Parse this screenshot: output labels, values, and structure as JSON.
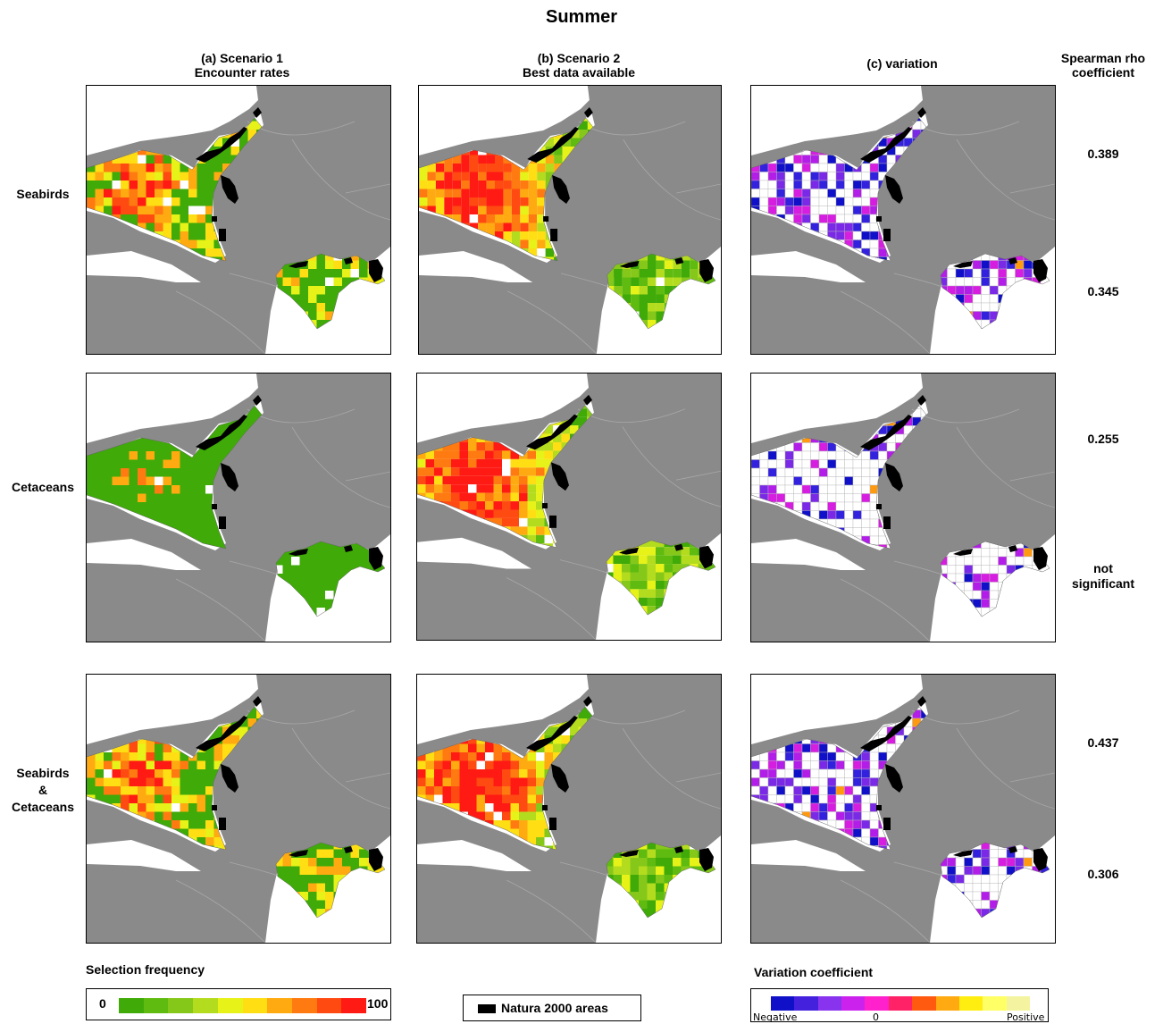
{
  "title": "Summer",
  "columns": [
    {
      "line1": "(a) Scenario 1",
      "line2": "Encounter rates"
    },
    {
      "line1": "(b) Scenario 2",
      "line2": "Best data available"
    },
    {
      "line1": "(c) variation",
      "line2": ""
    }
  ],
  "rho_header": {
    "line1": "Spearman rho",
    "line2": "coefficient"
  },
  "rows": [
    {
      "line1": "Seabirds",
      "line2": "",
      "line3": ""
    },
    {
      "line1": "Cetaceans",
      "line2": "",
      "line3": ""
    },
    {
      "line1": "Seabirds",
      "line2": "&",
      "line3": "Cetaceans"
    }
  ],
  "rho_values": [
    {
      "line1": "0.389",
      "line2": ""
    },
    {
      "line1": "0.345",
      "line2": ""
    },
    {
      "line1": "0.255",
      "line2": ""
    },
    {
      "line1": "not",
      "line2": "significant"
    },
    {
      "line1": "0.437",
      "line2": ""
    },
    {
      "line1": "0.306",
      "line2": ""
    }
  ],
  "legend_selection": {
    "title": "Selection frequency",
    "min": "0",
    "max": "100",
    "colors": [
      "#3faa08",
      "#5fbb10",
      "#86c81a",
      "#b4dc1f",
      "#e6f218",
      "#ffde14",
      "#ffaa10",
      "#ff7a10",
      "#ff4a12",
      "#ff1a14"
    ]
  },
  "legend_natura": {
    "label": "Natura 2000 areas"
  },
  "legend_variation": {
    "title": "Variation coefficient",
    "negative": "Negative",
    "zero": "0",
    "positive": "Positive",
    "colors": [
      "#1010c8",
      "#4422dd",
      "#8833ee",
      "#cc22ee",
      "#ff22cc",
      "#ff2266",
      "#ff5a10",
      "#ffaa10",
      "#ffee10",
      "#ffff66",
      "#f4f4a0"
    ]
  },
  "colors": {
    "land": "#8a8a8a",
    "sea": "#ffffff",
    "natura": "#000000"
  }
}
